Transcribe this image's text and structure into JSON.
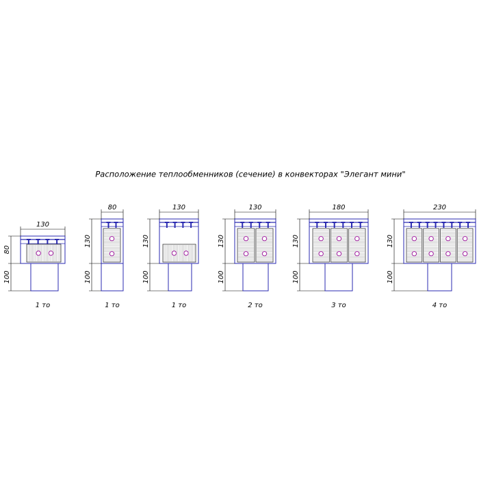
{
  "title": "Расположение теплообменников (сечение) в конвекторах \"Элегант мини\"",
  "drawings": [
    {
      "width": "130",
      "height": "80",
      "base": "100",
      "caption": "1 то"
    },
    {
      "width": "80",
      "height": "130",
      "base": "100",
      "caption": "1 то"
    },
    {
      "width": "130",
      "height": "130",
      "base": "100",
      "caption": "1 то"
    },
    {
      "width": "130",
      "height": "130",
      "base": "100",
      "caption": "2 то"
    },
    {
      "width": "180",
      "height": "130",
      "base": "100",
      "caption": "3 то"
    },
    {
      "width": "230",
      "height": "130",
      "base": "100",
      "caption": "4 то"
    }
  ]
}
